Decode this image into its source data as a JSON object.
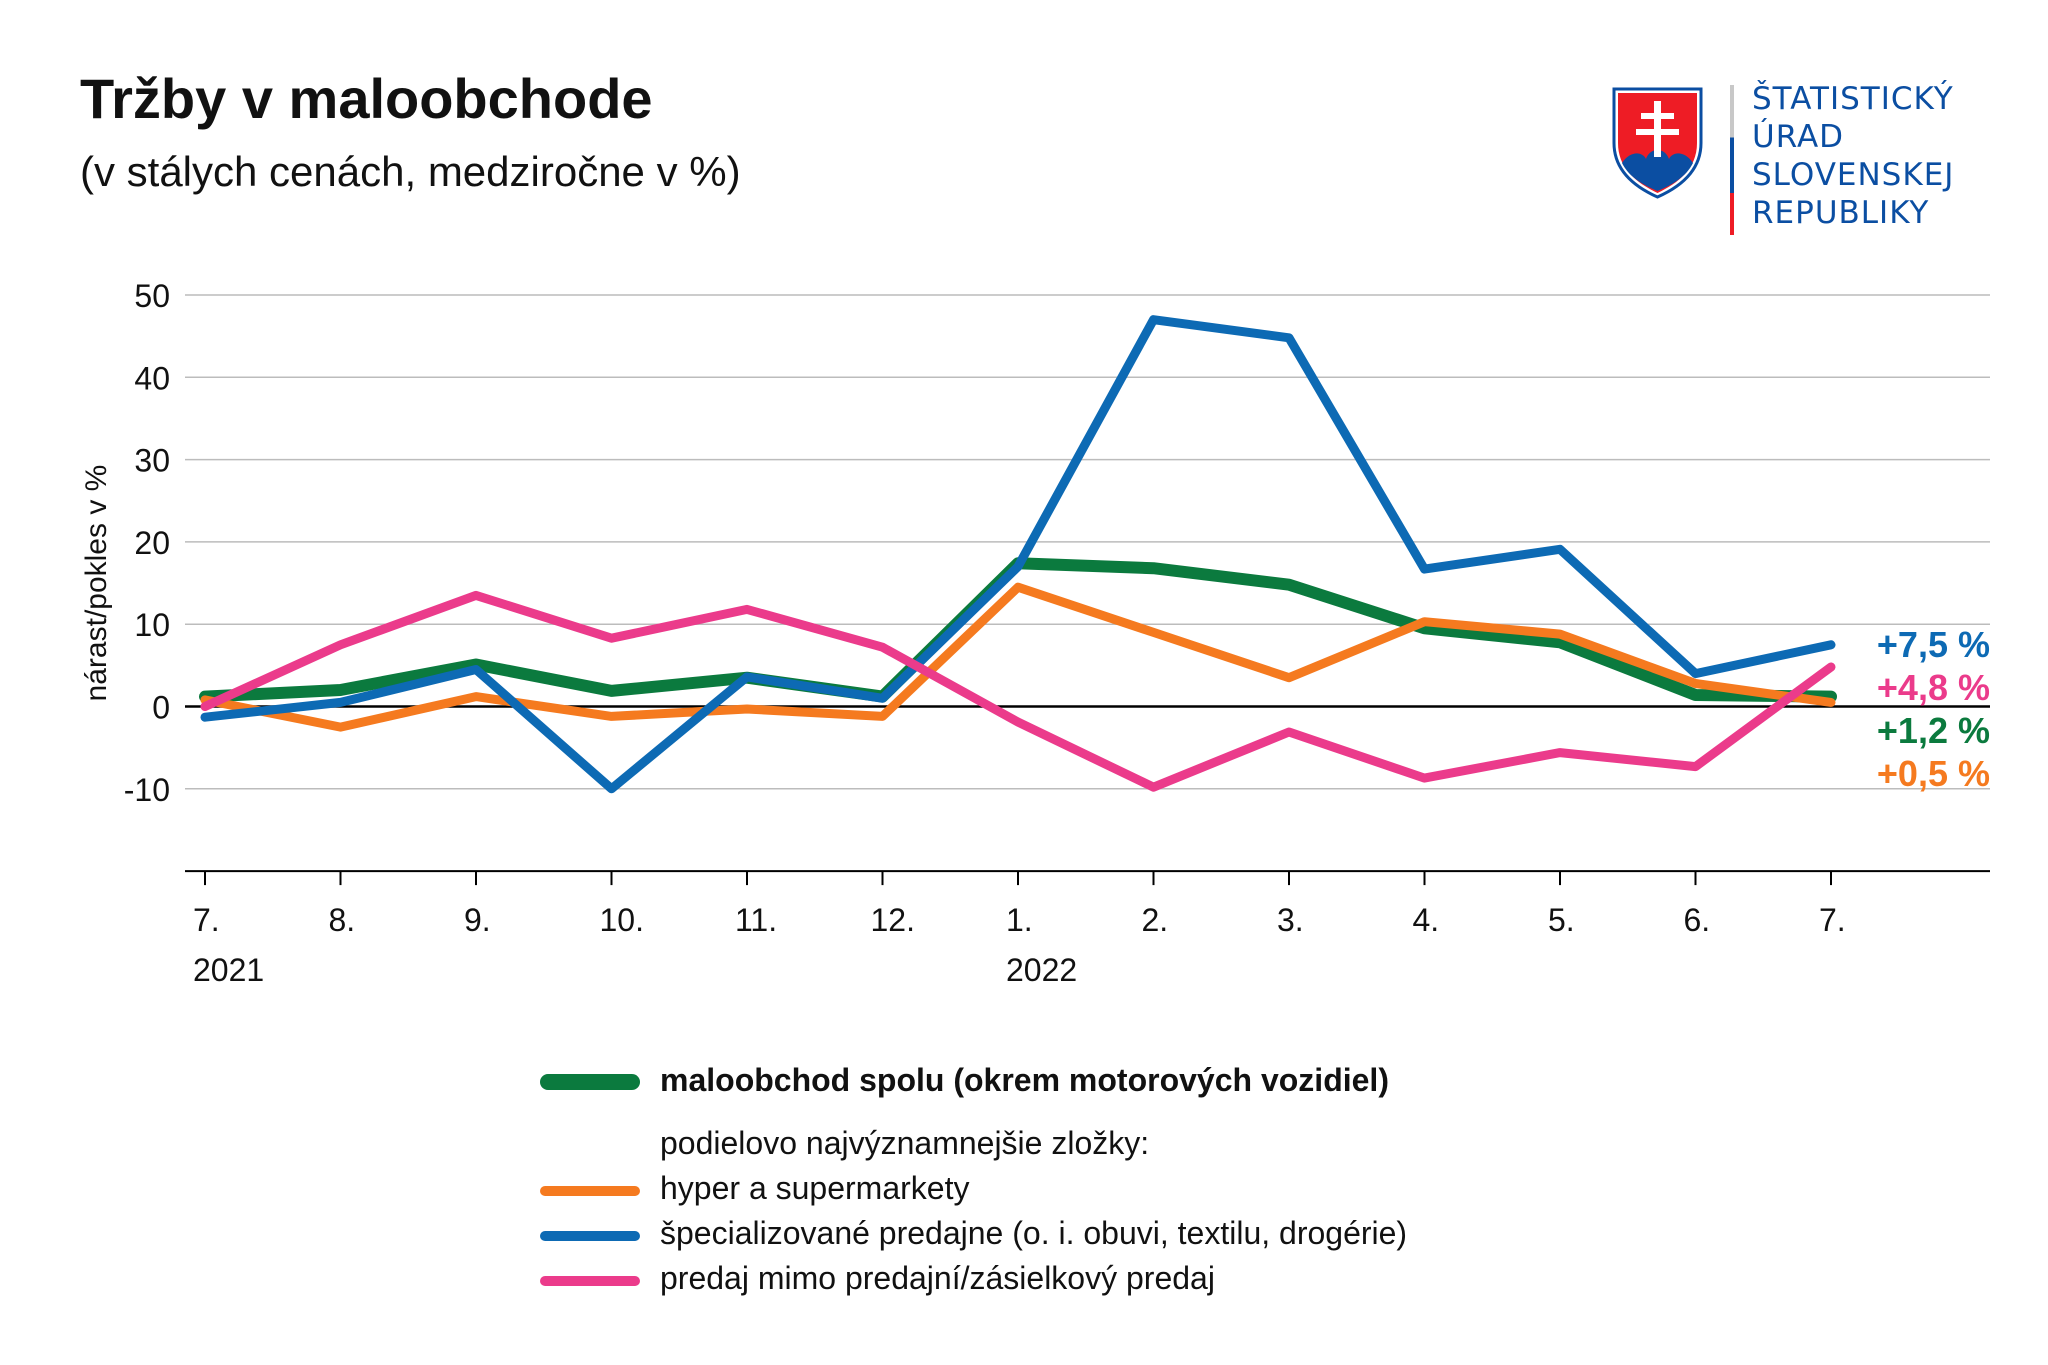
{
  "header": {
    "title": "Tržby v maloobchode",
    "subtitle": "(v stálych cenách, medziročne v %)"
  },
  "logo": {
    "lines": [
      "ŠTATISTICKÝ",
      "ÚRAD",
      "SLOVENSKEJ",
      "REPUBLIKY"
    ],
    "colors": {
      "blue": "#0b4ea2",
      "red": "#ee1c25",
      "white": "#ffffff"
    }
  },
  "legend": {
    "note": "podielovo najvýznamnejšie zložky:"
  },
  "chart_data": {
    "type": "line",
    "title": "Tržby v maloobchode",
    "subtitle": "(v stálych cenách, medziročne v %)",
    "ylabel": "nárast/pokles v %",
    "xlabel": "",
    "ylim": [
      -20,
      50
    ],
    "y_ticks": [
      50,
      40,
      30,
      20,
      10,
      0,
      -10
    ],
    "grid": true,
    "categories": [
      "7.",
      "8.",
      "9.",
      "10.",
      "11.",
      "12.",
      "1.",
      "2.",
      "3.",
      "4.",
      "5.",
      "6.",
      "7."
    ],
    "year_labels": [
      {
        "index": 0,
        "label": "2021"
      },
      {
        "index": 6,
        "label": "2022"
      }
    ],
    "series": [
      {
        "name": "maloobchod spolu (okrem motorových vozidiel)",
        "color": "#0b7a3e",
        "bold": true,
        "values": [
          1.2,
          2.0,
          5.1,
          1.9,
          3.5,
          1.2,
          17.4,
          16.8,
          14.8,
          9.5,
          7.8,
          1.4,
          1.2
        ],
        "end_label": "+1,2 %"
      },
      {
        "name": "hyper a supermarkety",
        "color": "#f57a1f",
        "bold": false,
        "values": [
          0.8,
          -2.5,
          1.2,
          -1.2,
          -0.3,
          -1.2,
          14.5,
          9.0,
          3.5,
          10.3,
          8.8,
          2.8,
          0.5
        ],
        "end_label": "+0,5 %"
      },
      {
        "name": "špecializované predajne (o. i. obuvi, textilu, drogérie)",
        "color": "#0d6ab4",
        "bold": false,
        "values": [
          -1.3,
          0.5,
          4.5,
          -10.0,
          3.6,
          1.0,
          17.0,
          47.0,
          44.8,
          16.7,
          19.1,
          4.0,
          7.5
        ],
        "end_label": "+7,5 %"
      },
      {
        "name": "predaj mimo predajní/zásielkový predaj",
        "color": "#eb3b8b",
        "bold": false,
        "values": [
          0.0,
          7.5,
          13.5,
          8.3,
          11.8,
          7.2,
          -1.9,
          -9.8,
          -3.1,
          -8.7,
          -5.6,
          -7.3,
          4.8
        ],
        "end_label": "+4,8 %"
      }
    ],
    "end_label_order": [
      2,
      3,
      0,
      1
    ]
  }
}
